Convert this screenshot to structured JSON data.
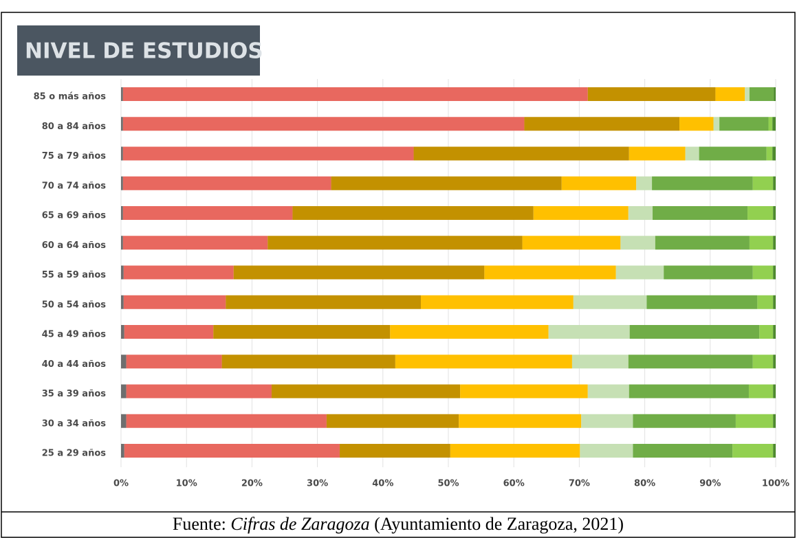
{
  "chart_data": {
    "type": "stacked-bar-horizontal",
    "title": "NIVEL DE ESTUDIOS",
    "categories": [
      "85 o más años",
      "80 a 84 años",
      "75 a 79 años",
      "70 a 74 años",
      "65 a 69 años",
      "60 a 64 años",
      "55 a 59 años",
      "50 a 54 años",
      "45 a 49 años",
      "40 a 44 años",
      "35 a 39 años",
      "30 a 34 años",
      "25 a 29 años"
    ],
    "series": [
      {
        "color": "#6e6e6e",
        "values": [
          0.3,
          0.3,
          0.3,
          0.3,
          0.3,
          0.3,
          0.4,
          0.4,
          0.5,
          0.8,
          0.8,
          0.8,
          0.5
        ]
      },
      {
        "color": "#e8685f",
        "values": [
          71.0,
          61.3,
          44.4,
          31.8,
          25.9,
          22.1,
          16.8,
          15.6,
          13.6,
          14.6,
          22.2,
          30.6,
          32.9
        ]
      },
      {
        "color": "#c39100",
        "values": [
          19.5,
          23.7,
          32.9,
          35.2,
          36.8,
          38.9,
          38.3,
          29.8,
          27.0,
          26.5,
          28.8,
          20.2,
          16.9
        ]
      },
      {
        "color": "#ffc000",
        "values": [
          4.5,
          5.2,
          8.6,
          11.4,
          14.5,
          15.0,
          20.1,
          23.3,
          24.2,
          27.0,
          19.5,
          18.7,
          19.8
        ]
      },
      {
        "color": "#c6e0b4",
        "values": [
          0.7,
          0.9,
          2.1,
          2.4,
          3.7,
          5.3,
          7.3,
          11.2,
          12.4,
          8.6,
          6.3,
          7.9,
          8.1
        ]
      },
      {
        "color": "#70ad47",
        "values": [
          3.7,
          7.5,
          10.3,
          15.4,
          14.5,
          14.4,
          13.6,
          16.9,
          19.8,
          19.0,
          18.3,
          15.7,
          15.2
        ]
      },
      {
        "color": "#92d050",
        "values": [
          0,
          0.6,
          0.9,
          3.1,
          3.9,
          3.6,
          3.1,
          2.4,
          2.1,
          3.1,
          3.7,
          5.7,
          6.2
        ]
      },
      {
        "color": "#4e8a2e",
        "values": [
          0.3,
          0.5,
          0.5,
          0.4,
          0.4,
          0.4,
          0.4,
          0.4,
          0.4,
          0.4,
          0.4,
          0.4,
          0.4
        ]
      }
    ],
    "xlim": [
      0,
      100
    ],
    "xticks": [
      {
        "value": 0,
        "label": "0%"
      },
      {
        "value": 10,
        "label": "10%"
      },
      {
        "value": 20,
        "label": "20%"
      },
      {
        "value": 30,
        "label": "30%"
      },
      {
        "value": 40,
        "label": "40%"
      },
      {
        "value": 50,
        "label": "50%"
      },
      {
        "value": 60,
        "label": "60%"
      },
      {
        "value": 70,
        "label": "70%"
      },
      {
        "value": 80,
        "label": "80%"
      },
      {
        "value": 90,
        "label": "90%"
      },
      {
        "value": 100,
        "label": "100%"
      }
    ],
    "grid": true
  },
  "caption": {
    "prefix": "Fuente:",
    "title": "Cifras de Zaragoza",
    "suffix": "(Ayuntamiento de Zaragoza, 2021)"
  }
}
